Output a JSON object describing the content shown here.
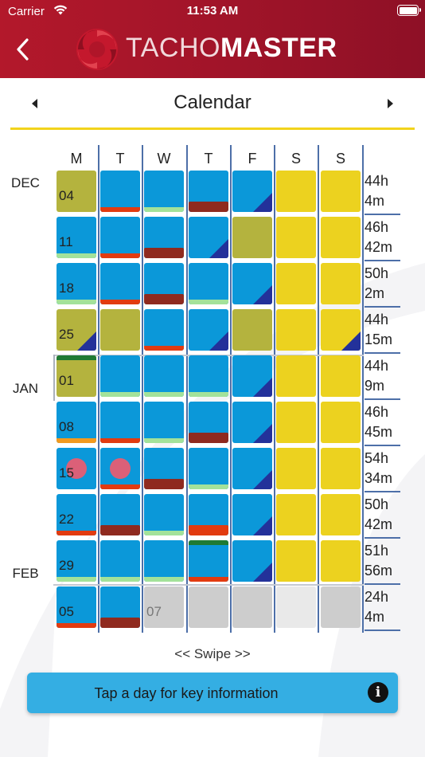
{
  "status_bar": {
    "carrier": "Carrier",
    "time": "11:53 AM"
  },
  "header": {
    "brand_part1": "TACHO",
    "brand_part2": "MASTER"
  },
  "nav": {
    "title": "Calendar"
  },
  "days_header": [
    "M",
    "T",
    "W",
    "T",
    "F",
    "S",
    "S"
  ],
  "months": [
    {
      "label": "DEC",
      "row": 0
    },
    {
      "label": "JAN",
      "row": 4
    },
    {
      "label": "FEB",
      "row": 8
    }
  ],
  "colors": {
    "blue": "#0b98d9",
    "olive": "#b4b33e",
    "yellow": "#ecd21f",
    "grey": "#cdcdcd",
    "lightgrey": "#e9e9e9",
    "green_bar": "#a3e29a",
    "red_bar": "#e23b10",
    "maroon_bar": "#8f2a1f",
    "orange_bar": "#f39a1e",
    "dark_green": "#1f7a33",
    "triangle": "#23319a",
    "accent_line": "#f2d31b",
    "info_banner": "#34aee3"
  },
  "weeks": [
    {
      "total_hours": "44h",
      "total_minutes": "4m",
      "days": [
        {
          "color": "olive",
          "number": "04"
        },
        {
          "color": "blue",
          "bar": "red_bar"
        },
        {
          "color": "blue",
          "bar": "green_bar"
        },
        {
          "color": "blue",
          "bar": "maroon_bar",
          "thick": true
        },
        {
          "color": "blue",
          "tri": true
        },
        {
          "color": "yellow"
        },
        {
          "color": "yellow"
        }
      ]
    },
    {
      "total_hours": "46h",
      "total_minutes": "42m",
      "days": [
        {
          "color": "blue",
          "number": "11",
          "bar": "green_bar"
        },
        {
          "color": "blue",
          "bar": "red_bar"
        },
        {
          "color": "blue",
          "bar": "maroon_bar",
          "thick": true
        },
        {
          "color": "blue",
          "tri": true
        },
        {
          "color": "olive"
        },
        {
          "color": "yellow"
        },
        {
          "color": "yellow"
        }
      ]
    },
    {
      "total_hours": "50h",
      "total_minutes": "2m",
      "days": [
        {
          "color": "blue",
          "number": "18",
          "bar": "green_bar"
        },
        {
          "color": "blue",
          "bar": "red_bar"
        },
        {
          "color": "blue",
          "bar": "maroon_bar",
          "thick": true
        },
        {
          "color": "blue",
          "bar": "green_bar"
        },
        {
          "color": "blue",
          "tri": true
        },
        {
          "color": "yellow"
        },
        {
          "color": "yellow"
        }
      ]
    },
    {
      "total_hours": "44h",
      "total_minutes": "15m",
      "days": [
        {
          "color": "olive",
          "number": "25",
          "tri": true
        },
        {
          "color": "olive"
        },
        {
          "color": "blue",
          "bar": "red_bar"
        },
        {
          "color": "blue",
          "tri": true
        },
        {
          "color": "olive"
        },
        {
          "color": "yellow"
        },
        {
          "color": "yellow",
          "tri": true
        }
      ]
    },
    {
      "total_hours": "44h",
      "total_minutes": "9m",
      "days": [
        {
          "color": "olive",
          "number": "01",
          "top_green": true
        },
        {
          "color": "blue",
          "bar": "green_bar"
        },
        {
          "color": "blue",
          "bar": "green_bar"
        },
        {
          "color": "blue",
          "bar": "green_bar"
        },
        {
          "color": "blue",
          "tri": true
        },
        {
          "color": "yellow"
        },
        {
          "color": "yellow"
        }
      ]
    },
    {
      "total_hours": "46h",
      "total_minutes": "45m",
      "days": [
        {
          "color": "blue",
          "number": "08",
          "bar": "orange_bar"
        },
        {
          "color": "blue",
          "bar": "red_bar"
        },
        {
          "color": "blue",
          "bar": "green_bar"
        },
        {
          "color": "blue",
          "bar": "maroon_bar",
          "thick": true
        },
        {
          "color": "blue",
          "tri": true
        },
        {
          "color": "yellow"
        },
        {
          "color": "yellow"
        }
      ]
    },
    {
      "total_hours": "54h",
      "total_minutes": "34m",
      "days": [
        {
          "color": "blue",
          "number": "15",
          "dot": true
        },
        {
          "color": "blue",
          "bar": "red_bar",
          "dot": true
        },
        {
          "color": "blue",
          "bar": "maroon_bar",
          "thick": true
        },
        {
          "color": "blue",
          "bar": "green_bar"
        },
        {
          "color": "blue",
          "tri": true
        },
        {
          "color": "yellow"
        },
        {
          "color": "yellow"
        }
      ]
    },
    {
      "total_hours": "50h",
      "total_minutes": "42m",
      "days": [
        {
          "color": "blue",
          "number": "22",
          "bar": "red_bar"
        },
        {
          "color": "blue",
          "bar": "maroon_bar",
          "thick": true
        },
        {
          "color": "blue",
          "bar": "green_bar"
        },
        {
          "color": "blue",
          "bar": "red_bar",
          "thick": true
        },
        {
          "color": "blue",
          "tri": true
        },
        {
          "color": "yellow"
        },
        {
          "color": "yellow"
        }
      ]
    },
    {
      "total_hours": "51h",
      "total_minutes": "56m",
      "days": [
        {
          "color": "blue",
          "number": "29",
          "bar": "green_bar"
        },
        {
          "color": "blue",
          "bar": "green_bar"
        },
        {
          "color": "blue",
          "bar": "green_bar"
        },
        {
          "color": "blue",
          "bar": "red_bar",
          "top_green": true
        },
        {
          "color": "blue",
          "tri": true
        },
        {
          "color": "yellow"
        },
        {
          "color": "yellow"
        }
      ]
    },
    {
      "total_hours": "24h",
      "total_minutes": "4m",
      "days": [
        {
          "color": "blue",
          "number": "05",
          "bar": "red_bar"
        },
        {
          "color": "blue",
          "bar": "maroon_bar",
          "thick": true
        },
        {
          "color": "grey",
          "number": "07",
          "grey_num": true
        },
        {
          "color": "grey"
        },
        {
          "color": "grey"
        },
        {
          "color": "lightgrey"
        },
        {
          "color": "grey"
        }
      ]
    }
  ],
  "footer": {
    "swipe_hint": "<< Swipe >>",
    "info_text": "Tap a day for key information",
    "info_icon": "i"
  }
}
